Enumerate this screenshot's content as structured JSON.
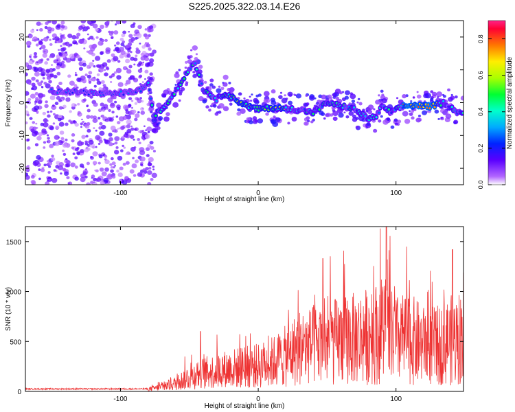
{
  "figure": {
    "title": "S225.2025.322.03.14.E26"
  },
  "chart_data": [
    {
      "type": "heatmap",
      "xlabel": "Height of straight line (km)",
      "ylabel": "Frequency (Hz)",
      "xlim": [
        -169,
        149
      ],
      "ylim": [
        -25,
        25
      ],
      "xticks": [
        -100,
        0,
        100
      ],
      "yticks": [
        -20,
        -10,
        0,
        10,
        20
      ],
      "colorbar": {
        "label": "Normalized spectral amplitude",
        "range": [
          0,
          0.9
        ],
        "ticks": [
          0.0,
          0.2,
          0.4,
          0.6,
          0.8
        ]
      },
      "ridge_frequency_hz": [
        [
          -145,
          3.5
        ],
        [
          -125,
          3.2
        ],
        [
          -110,
          2.5
        ],
        [
          -95,
          3
        ],
        [
          -85,
          4
        ],
        [
          -80,
          6
        ],
        [
          -76,
          -4
        ],
        [
          -70,
          -2
        ],
        [
          -64,
          1
        ],
        [
          -58,
          5
        ],
        [
          -52,
          9
        ],
        [
          -46,
          12.5
        ],
        [
          -40,
          4
        ],
        [
          -30,
          1
        ],
        [
          -24,
          3
        ],
        [
          -15,
          0.5
        ],
        [
          -8,
          -1
        ],
        [
          0,
          -2
        ],
        [
          10,
          -1.5
        ],
        [
          20,
          -2
        ],
        [
          30,
          -2
        ],
        [
          40,
          -3
        ],
        [
          50,
          0
        ],
        [
          60,
          -1
        ],
        [
          70,
          -2
        ],
        [
          80,
          -5
        ],
        [
          86,
          -4
        ],
        [
          90,
          -1
        ],
        [
          96,
          -3
        ],
        [
          106,
          -1
        ],
        [
          115,
          -0.8
        ],
        [
          125,
          -1.2
        ],
        [
          135,
          0
        ],
        [
          145,
          -3
        ]
      ],
      "noise_region_km": [
        -169,
        -79
      ]
    },
    {
      "type": "line",
      "xlabel": "Height of straight line (km)",
      "ylabel": "SNR (10 * v/v)",
      "xlim": [
        -169,
        149
      ],
      "ylim": [
        0,
        1650
      ],
      "xticks": [
        -100,
        0,
        100
      ],
      "yticks": [
        0,
        500,
        1000,
        1500
      ],
      "color": "#ee3333",
      "envelope": {
        "x": [
          -169,
          -100,
          -80,
          -70,
          -60,
          -50,
          -40,
          -30,
          -20,
          -10,
          0,
          10,
          20,
          30,
          40,
          50,
          60,
          70,
          80,
          90,
          100,
          110,
          120,
          130,
          140,
          149
        ],
        "y": [
          25,
          25,
          30,
          60,
          110,
          200,
          250,
          280,
          310,
          330,
          350,
          400,
          480,
          600,
          620,
          650,
          700,
          720,
          760,
          820,
          700,
          720,
          620,
          620,
          700,
          760
        ]
      },
      "peaks": [
        {
          "x": -42,
          "y": 600
        },
        {
          "x": 47,
          "y": 1330
        },
        {
          "x": 93,
          "y": 1660
        },
        {
          "x": 141,
          "y": 1420
        },
        {
          "x": 149,
          "y": 1190
        }
      ]
    }
  ]
}
